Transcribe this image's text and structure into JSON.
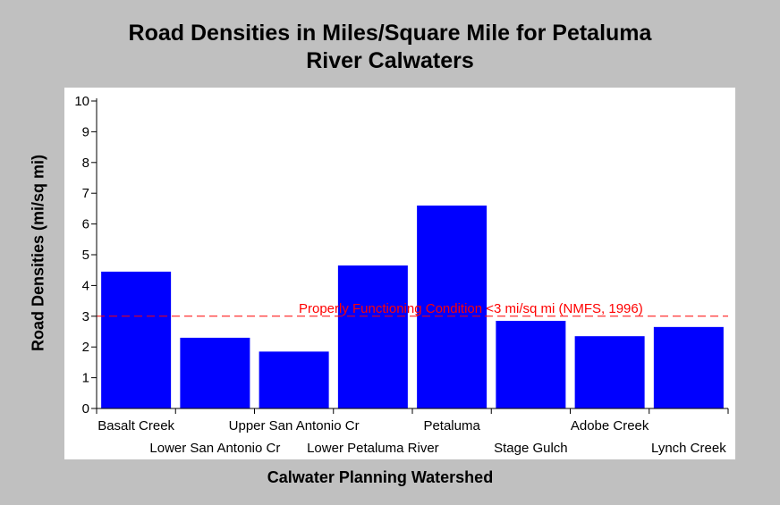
{
  "chart_data": {
    "type": "bar",
    "title_line1": "Road Densities in Miles/Square Mile for Petaluma",
    "title_line2": "River Calwaters",
    "xlabel": "Calwater Planning Watershed",
    "ylabel": "Road Densities (mi/sq mi)",
    "categories": [
      "Basalt Creek",
      "Lower San Antonio Cr",
      "Upper San Antonio Cr",
      "Lower Petaluma River",
      "Petaluma",
      "Stage Gulch",
      "Adobe Creek",
      "Lynch Creek"
    ],
    "values": [
      4.45,
      2.3,
      1.85,
      4.65,
      6.6,
      2.85,
      2.35,
      2.65
    ],
    "ylim": [
      0,
      10
    ],
    "yticks": [
      "0",
      "1",
      "2",
      "3",
      "4",
      "5",
      "6",
      "7",
      "8",
      "9",
      "10"
    ],
    "grid": false,
    "bar_color": "#0000ff",
    "reference_line": {
      "value": 3,
      "label": "Properly Functioning Condition <3 mi/sq mi (NMFS, 1996)",
      "color": "#ff0000",
      "style": "dashed"
    }
  }
}
